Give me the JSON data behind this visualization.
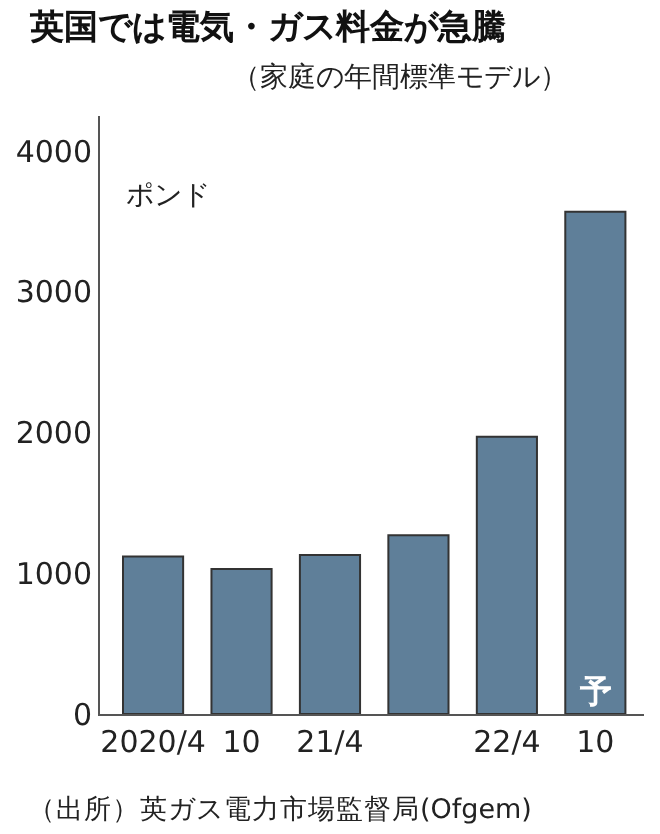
{
  "chart_data": {
    "type": "bar",
    "title": "英国では電気・ガス料金が急騰",
    "subtitle": "（家庭の年間標準モデル）",
    "categories": [
      "2020/4",
      "10",
      "21/4",
      null,
      "22/4",
      "10"
    ],
    "values": [
      1120,
      1030,
      1130,
      1270,
      1970,
      3570
    ],
    "color": "#5f7f99",
    "ylim": [
      0,
      4250
    ],
    "yticks": [
      0,
      1000,
      2000,
      3000,
      4000
    ],
    "annotations": [
      "ポンド",
      "予",
      "（出所）英ガス電力市場監督局(Ofgem)"
    ]
  }
}
